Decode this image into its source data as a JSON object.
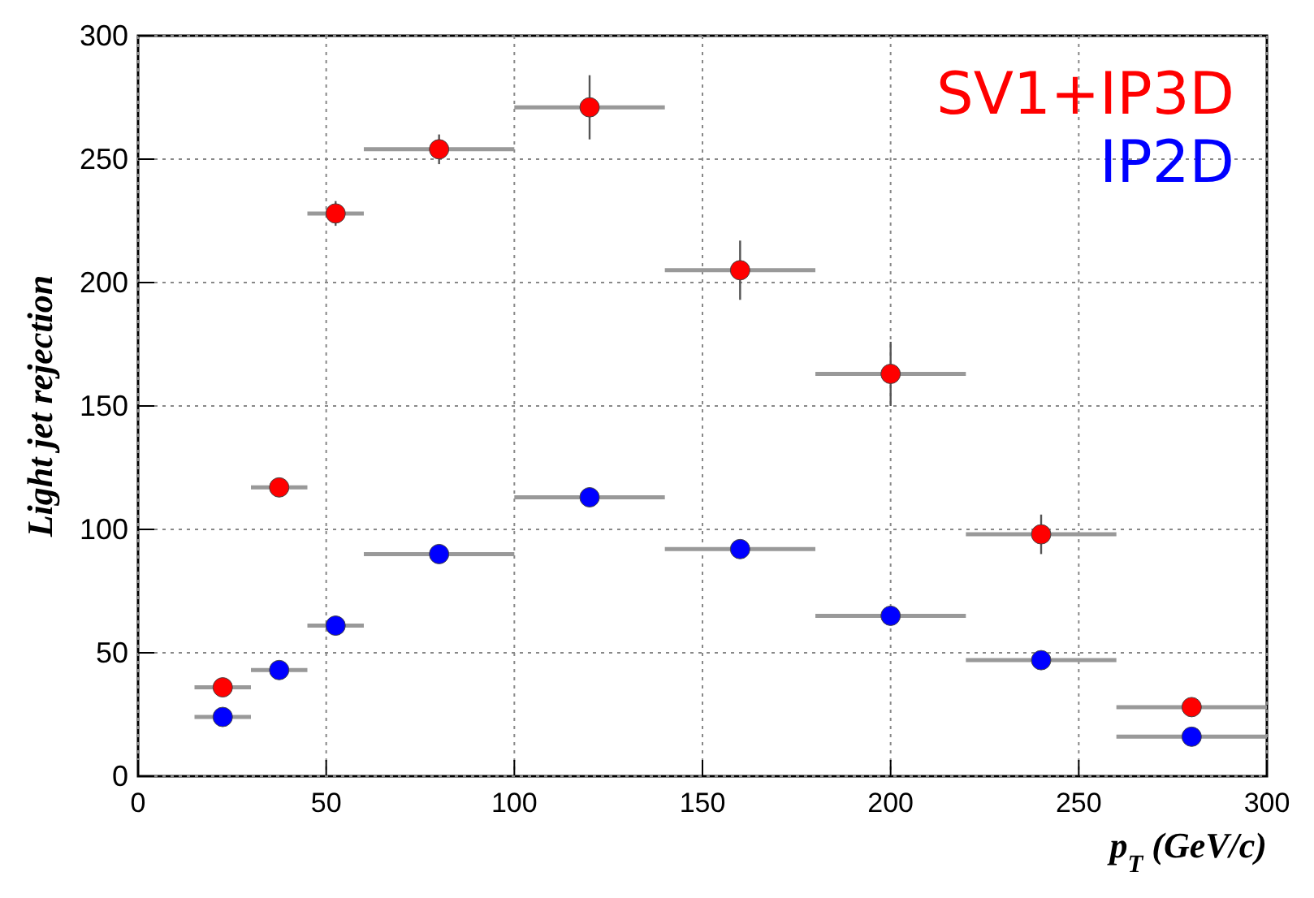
{
  "chart_data": {
    "type": "scatter",
    "xlabel": "p$_{T}$ (GeV/c)",
    "ylabel": "Light jet rejection",
    "xlim": [
      0,
      300
    ],
    "ylim": [
      0,
      300
    ],
    "xticks": [
      0,
      50,
      100,
      150,
      200,
      250,
      300
    ],
    "yticks": [
      0,
      50,
      100,
      150,
      200,
      250,
      300
    ],
    "grid": true,
    "legend": "top right",
    "marker": "circle",
    "x": [
      22.5,
      37.5,
      52.5,
      80,
      120,
      160,
      200,
      240,
      280
    ],
    "series": [
      {
        "name": "SV1+IP3D",
        "color": "#ff0000",
        "values": [
          36,
          117,
          228,
          254,
          271,
          205,
          163,
          98,
          28
        ],
        "errors": [
          3,
          3,
          5,
          6,
          13,
          12,
          13,
          8,
          3
        ],
        "xerrors": [
          7.5,
          7.5,
          7.5,
          20,
          20,
          20,
          20,
          20,
          20
        ]
      },
      {
        "name": "IP2D",
        "color": "#0000ff",
        "values": [
          24,
          43,
          61,
          90,
          113,
          92,
          65,
          47,
          16
        ],
        "xerrors": [
          7.5,
          7.5,
          7.5,
          20,
          20,
          20,
          20,
          20,
          20
        ]
      }
    ]
  }
}
